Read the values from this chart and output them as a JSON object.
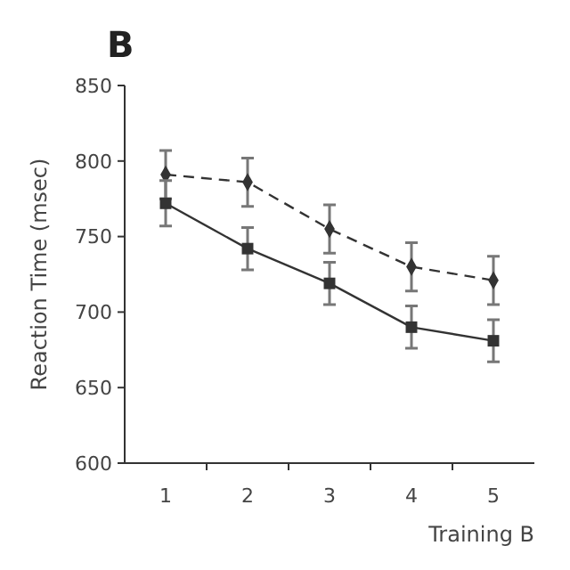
{
  "chart_data": {
    "type": "line",
    "title": "B",
    "xlabel": "Training B",
    "ylabel": "Reaction Time (msec)",
    "categories": [
      "1",
      "2",
      "3",
      "4",
      "5"
    ],
    "series": [
      {
        "color": "#333333",
        "marker": "diamond",
        "line_style": "dashed",
        "values": [
          791,
          786,
          755,
          730,
          721
        ],
        "errors": [
          16,
          16,
          16,
          16,
          16
        ]
      },
      {
        "color": "#333333",
        "marker": "square",
        "line_style": "solid",
        "values": [
          772,
          742,
          719,
          690,
          681
        ],
        "errors": [
          15,
          14,
          14,
          14,
          14
        ]
      }
    ],
    "ylim": [
      600,
      850
    ],
    "yticks": [
      600,
      650,
      700,
      750,
      800,
      850
    ],
    "grid": false
  }
}
